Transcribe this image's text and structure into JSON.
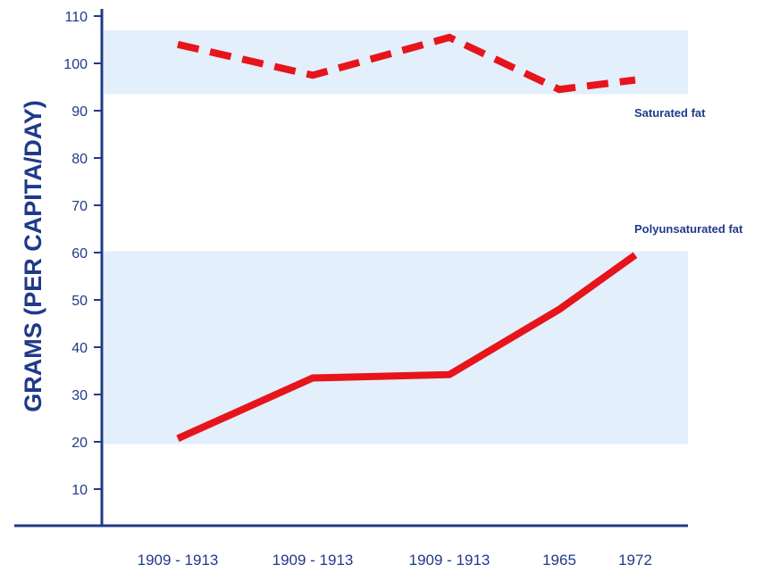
{
  "chart_data": {
    "type": "line",
    "title": "",
    "xlabel": "",
    "ylabel": "GRAMS (PER CAPITA/DAY)",
    "ylim": [
      0,
      110
    ],
    "yticks": [
      10,
      20,
      30,
      40,
      50,
      60,
      70,
      80,
      90,
      100,
      110
    ],
    "categories": [
      "1909 - 1913",
      "1909 - 1913",
      "1909 - 1913",
      "1965",
      "1972"
    ],
    "grid": false,
    "bands": [
      {
        "from": 93.5,
        "to": 107
      },
      {
        "from": 19.5,
        "to": 60.3
      }
    ],
    "series": [
      {
        "name": "Saturated fat",
        "style": "dashed",
        "color": "#e8141b",
        "values": [
          104,
          97.5,
          105.5,
          94.5,
          96.5
        ]
      },
      {
        "name": "Polyunsaturated fat",
        "style": "solid",
        "color": "#e8141b",
        "values": [
          20.7,
          33.5,
          34.2,
          48,
          59.5
        ]
      }
    ],
    "colors": {
      "axis": "#1f3a8a",
      "band": "#e3effb",
      "line": "#e8141b"
    }
  }
}
